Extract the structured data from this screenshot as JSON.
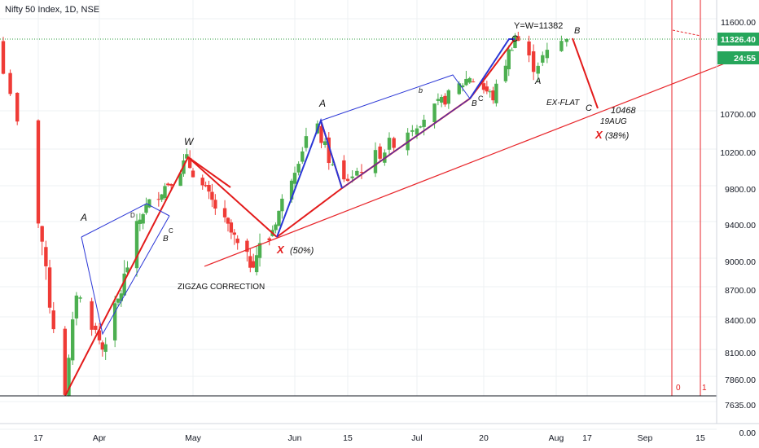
{
  "header": {
    "symbol_title": "Nifty 50 Index, 1D, NSE"
  },
  "price_badges": {
    "current": "11326.40",
    "countdown": "24:55"
  },
  "colors": {
    "up": "#4caf50",
    "down": "#ef3b36",
    "wave_red": "#e31b1b",
    "wave_blue": "#2a36d6",
    "trendline": "#e8262b",
    "axis_text": "#131722",
    "grid": "#eef0f3",
    "price_line": "#2e9e3f"
  },
  "chart_data": {
    "type": "candlestick",
    "title": "Nifty 50 Index, 1D, NSE",
    "y_tick_labels": [
      "11600.00",
      "10700.00",
      "10200.00",
      "9800.00",
      "9400.00",
      "9000.00",
      "8700.00",
      "8400.00",
      "8100.00",
      "7860.00",
      "7635.00",
      "0.00"
    ],
    "x_tick_labels": [
      "17",
      "Apr",
      "May",
      "Jun",
      "15",
      "Jul",
      "20",
      "Aug",
      "17",
      "Sep",
      "15"
    ],
    "last_price": 11326.4,
    "approx_price_path": [
      {
        "date": "Mar 11",
        "close": 11300
      },
      {
        "date": "Mar 17",
        "close": 9200
      },
      {
        "date": "Mar 24",
        "close": 7650
      },
      {
        "date": "Mar 27",
        "close": 8650
      },
      {
        "date": "Apr 3",
        "close": 8100
      },
      {
        "date": "Apr 16",
        "close": 9300
      },
      {
        "date": "Apr 30",
        "close": 9860
      },
      {
        "date": "May 18",
        "close": 8820
      },
      {
        "date": "May 26",
        "close": 9000
      },
      {
        "date": "Jun 8",
        "close": 10300
      },
      {
        "date": "Jun 15",
        "close": 9580
      },
      {
        "date": "Jul 17",
        "close": 10880
      },
      {
        "date": "Jul 24",
        "close": 10620
      },
      {
        "date": "Jul 31",
        "close": 11370
      },
      {
        "date": "Aug 5",
        "close": 11000
      },
      {
        "date": "Aug 12",
        "close": 11326
      }
    ],
    "wave_annotations": [
      {
        "label": "A"
      },
      {
        "label": "B"
      },
      {
        "label": "C"
      },
      {
        "label": "D"
      },
      {
        "label": "W"
      },
      {
        "label": "X"
      },
      {
        "label": "(50%)"
      },
      {
        "label": "A"
      },
      {
        "label": "b"
      },
      {
        "label": "B"
      },
      {
        "label": "C"
      },
      {
        "label": "Y=W=11382"
      },
      {
        "label": "C"
      },
      {
        "label": "A"
      },
      {
        "label": "B"
      },
      {
        "label": "EX-FLAT"
      },
      {
        "label": "C"
      },
      {
        "label": "10468"
      },
      {
        "label": "19AUG"
      },
      {
        "label": "X"
      },
      {
        "label": "(38%)"
      },
      {
        "label": "ZIGZAG CORRECTION"
      },
      {
        "label": "0"
      },
      {
        "label": "1"
      }
    ]
  }
}
